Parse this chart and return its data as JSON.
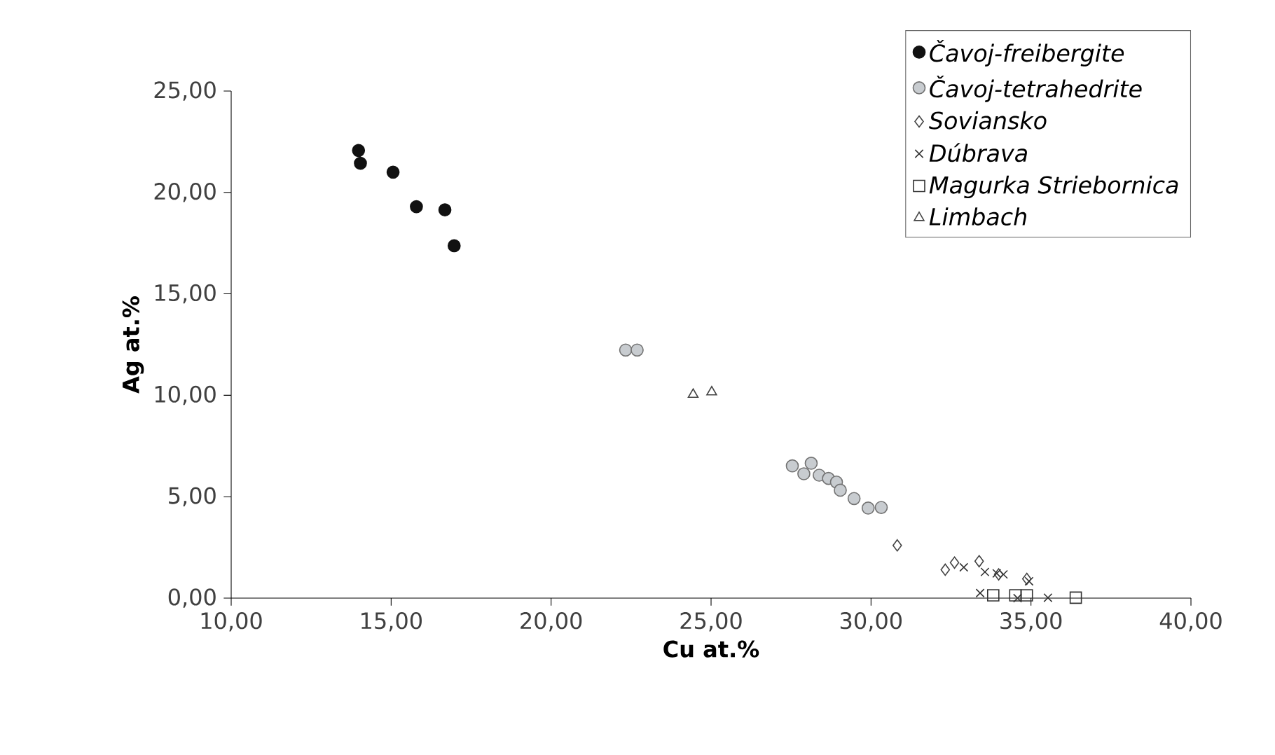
{
  "chart_data": {
    "type": "scatter",
    "xlabel": "Cu at.%",
    "ylabel": "Ag at.%",
    "legend": "top right",
    "grid": false,
    "xlim": [
      10,
      40
    ],
    "ylim": [
      0,
      25
    ],
    "xticks": [
      {
        "value": 10,
        "label": "10,00"
      },
      {
        "value": 15,
        "label": "15,00"
      },
      {
        "value": 20,
        "label": "20,00"
      },
      {
        "value": 25,
        "label": "25,00"
      },
      {
        "value": 30,
        "label": "30,00"
      },
      {
        "value": 35,
        "label": "35,00"
      },
      {
        "value": 40,
        "label": "40,00"
      }
    ],
    "yticks": [
      {
        "value": 0,
        "label": "0,00"
      },
      {
        "value": 5,
        "label": "5,00"
      },
      {
        "value": 10,
        "label": "10,00"
      },
      {
        "value": 15,
        "label": "15,00"
      },
      {
        "value": 20,
        "label": "20,00"
      },
      {
        "value": 25,
        "label": "25,00"
      }
    ],
    "series": [
      {
        "name": "Čavoj-freibergite",
        "color": "#111111",
        "marker": "circle",
        "x": [
          13.98,
          14.04,
          15.06,
          15.79,
          16.68,
          16.97
        ],
        "values": [
          22.07,
          21.44,
          21.0,
          19.3,
          19.14,
          17.37
        ]
      },
      {
        "name": "Čavoj-tetrahedrite",
        "color": "#c8ccd0",
        "marker": "circle",
        "x": [
          22.33,
          22.69,
          27.54,
          28.13,
          27.9,
          28.38,
          28.67,
          28.92,
          29.04,
          29.47,
          29.91,
          30.32
        ],
        "values": [
          12.23,
          12.23,
          6.52,
          6.65,
          6.13,
          6.06,
          5.9,
          5.72,
          5.32,
          4.91,
          4.44,
          4.47
        ]
      },
      {
        "name": "Soviansko",
        "color": "#444444",
        "marker": "diamond",
        "x": [
          30.82,
          32.32,
          32.61,
          33.38,
          33.99,
          34.87
        ],
        "values": [
          2.6,
          1.4,
          1.75,
          1.82,
          1.17,
          0.95
        ]
      },
      {
        "name": "Dúbrava",
        "color": "#333333",
        "marker": "cross",
        "x": [
          32.9,
          33.56,
          33.93,
          34.14,
          33.41,
          34.58,
          35.53,
          34.94
        ],
        "values": [
          1.52,
          1.29,
          1.22,
          1.17,
          0.25,
          0.0,
          0.02,
          0.83
        ]
      },
      {
        "name": "Magurka Striebornica",
        "color": "#333333",
        "marker": "square",
        "x": [
          33.82,
          34.51,
          34.87,
          36.4
        ],
        "values": [
          0.14,
          0.14,
          0.14,
          0.02
        ]
      },
      {
        "name": "Limbach",
        "color": "#444444",
        "marker": "triangle",
        "x": [
          24.44,
          25.02
        ],
        "values": [
          10.04,
          10.16
        ]
      }
    ]
  }
}
